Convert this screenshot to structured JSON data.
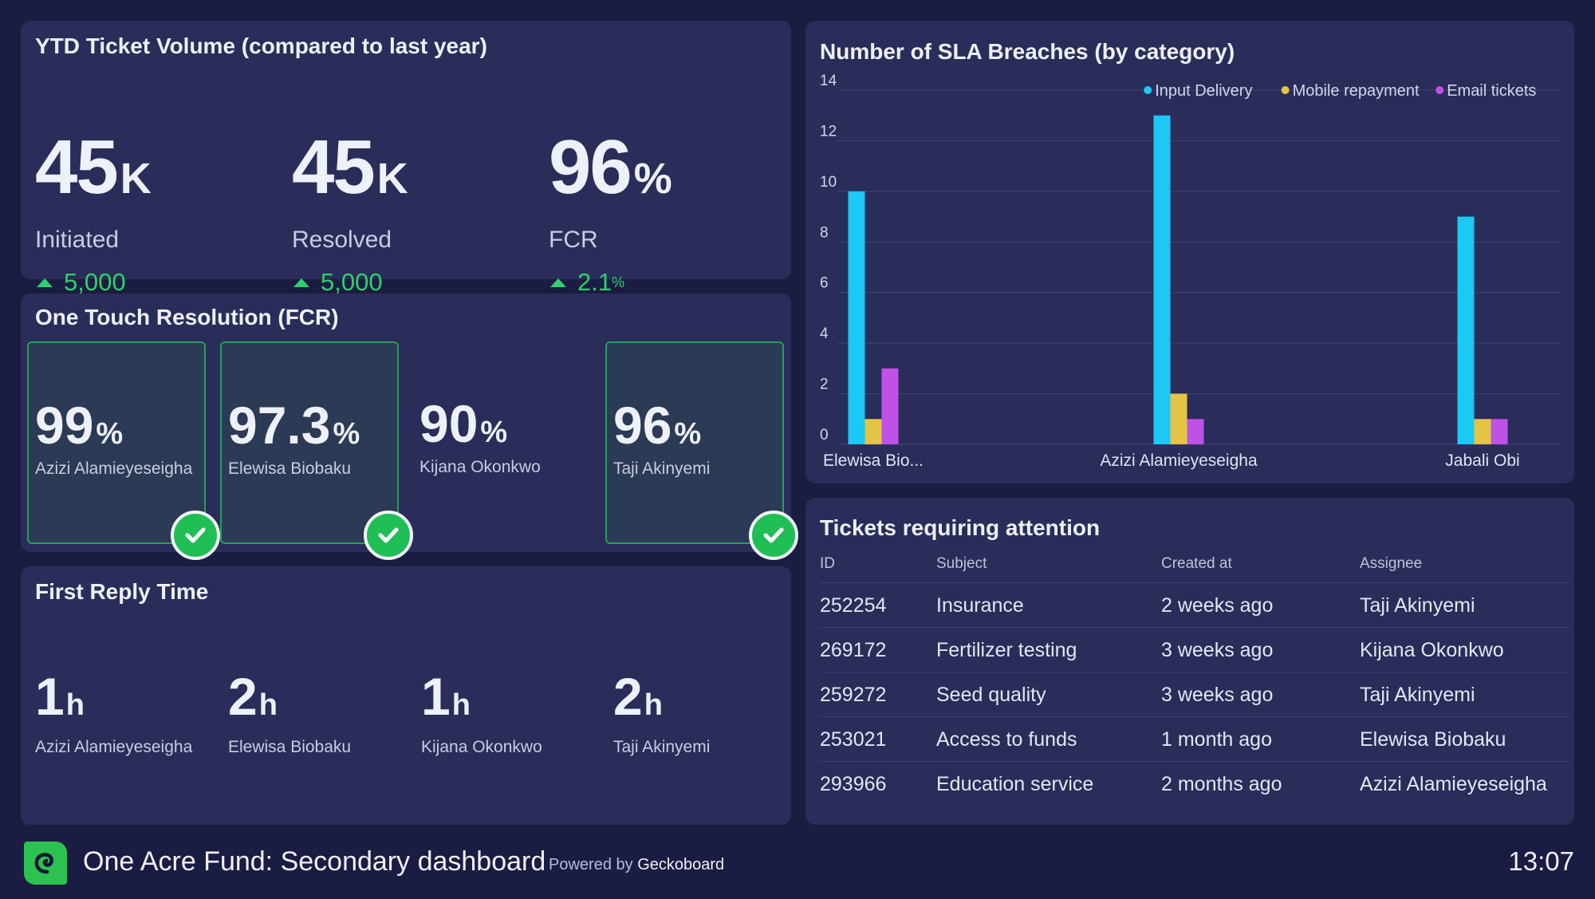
{
  "ytd": {
    "title": "YTD Ticket Volume (compared to last year)",
    "metrics": [
      {
        "value": "45",
        "unit": "K",
        "label": "Initiated",
        "delta": "5,000",
        "delta_unit": ""
      },
      {
        "value": "45",
        "unit": "K",
        "label": "Resolved",
        "delta": "5,000",
        "delta_unit": ""
      },
      {
        "value": "96",
        "unit": "%",
        "label": "FCR",
        "delta": "2.1",
        "delta_unit": "%"
      }
    ]
  },
  "fcr": {
    "title": "One Touch Resolution (FCR)",
    "items": [
      {
        "value": "99",
        "unit": "%",
        "name": "Azizi Alamieyeseigha",
        "goal_met": true
      },
      {
        "value": "97.3",
        "unit": "%",
        "name": "Elewisa Biobaku",
        "goal_met": true
      },
      {
        "value": "90",
        "unit": "%",
        "name": "Kijana Okonkwo",
        "goal_met": false
      },
      {
        "value": "96",
        "unit": "%",
        "name": "Taji Akinyemi",
        "goal_met": true
      }
    ]
  },
  "first_reply": {
    "title": "First Reply Time",
    "items": [
      {
        "value": "1",
        "unit": "h",
        "name": "Azizi Alamieyeseigha"
      },
      {
        "value": "2",
        "unit": "h",
        "name": "Elewisa Biobaku"
      },
      {
        "value": "1",
        "unit": "h",
        "name": "Kijana Okonkwo"
      },
      {
        "value": "2",
        "unit": "h",
        "name": "Taji Akinyemi"
      }
    ]
  },
  "chart_data": {
    "type": "bar",
    "title": "Number of SLA Breaches (by category)",
    "categories": [
      "Elewisa Bio...",
      "Azizi Alamieyeseigha",
      "Jabali Obi"
    ],
    "series": [
      {
        "name": "Input Delivery",
        "color": "#1cc8f5",
        "values": [
          10,
          13,
          9
        ]
      },
      {
        "name": "Mobile repayment",
        "color": "#e4c447",
        "values": [
          1,
          2,
          1
        ]
      },
      {
        "name": "Email tickets",
        "color": "#c051e6",
        "values": [
          3,
          1,
          1
        ]
      }
    ],
    "yticks": [
      "0",
      "2",
      "4",
      "6",
      "8",
      "10",
      "12",
      "14"
    ],
    "ylim": [
      0,
      14
    ],
    "grid": true,
    "legend": "top-right"
  },
  "tickets": {
    "title": "Tickets requiring attention",
    "columns": [
      "ID",
      "Subject",
      "Created at",
      "Assignee"
    ],
    "rows": [
      [
        "252254",
        "Insurance",
        "2 weeks ago",
        "Taji Akinyemi"
      ],
      [
        "269172",
        "Fertilizer testing",
        "3 weeks ago",
        "Kijana Okonkwo"
      ],
      [
        "259272",
        "Seed quality",
        "3 weeks ago",
        "Taji Akinyemi"
      ],
      [
        "253021",
        "Access to funds",
        "1 month ago",
        "Elewisa Biobaku"
      ],
      [
        "293966",
        "Education service",
        "2 months ago",
        "Azizi Alamieyeseigha"
      ]
    ]
  },
  "footer": {
    "dashboard_title": "One Acre Fund: Secondary dashboard",
    "powered_prefix": "Powered by",
    "powered_brand": "Geckoboard",
    "clock": "13:07"
  }
}
